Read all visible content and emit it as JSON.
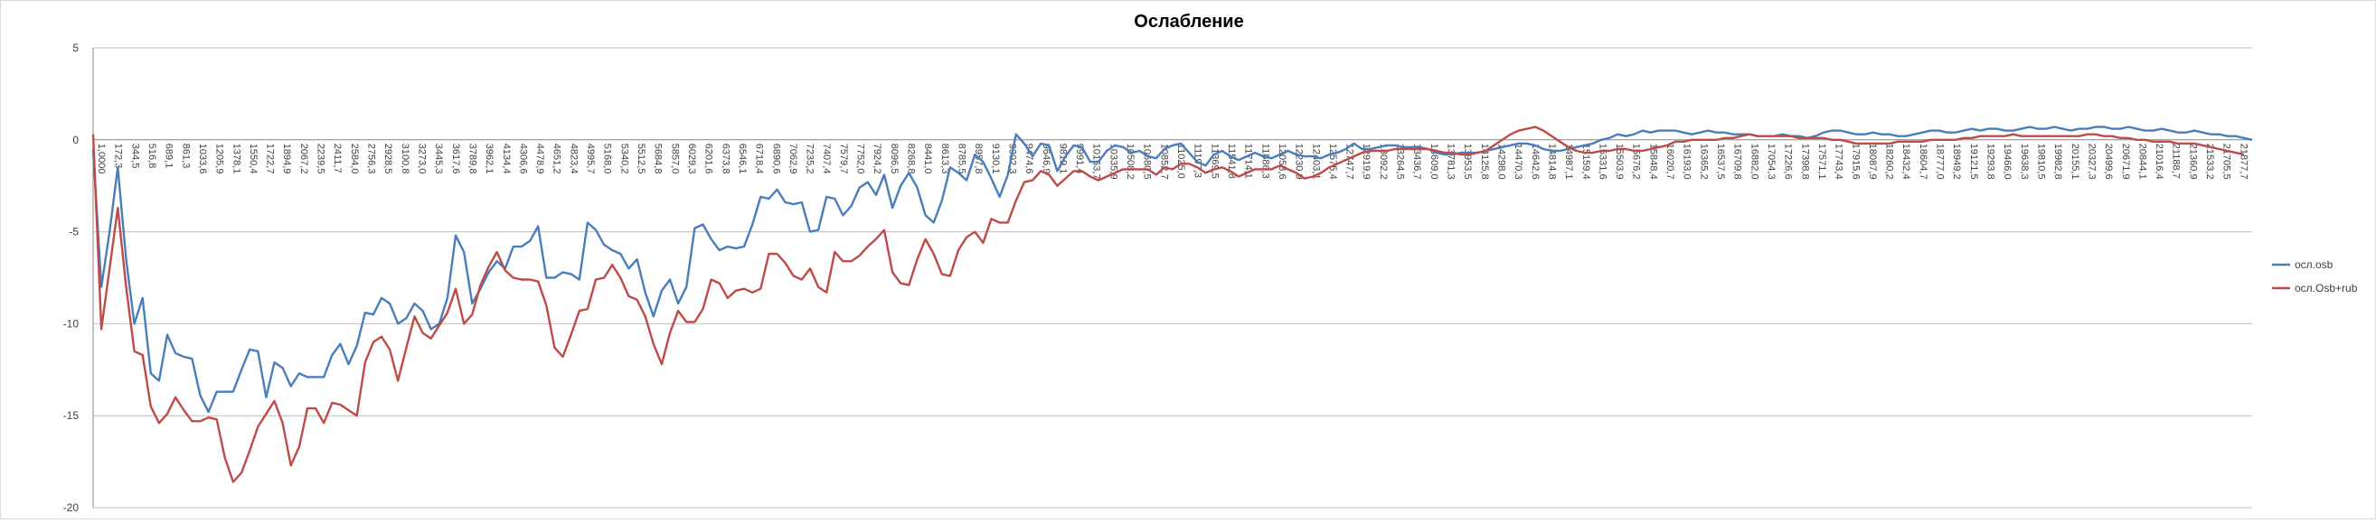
{
  "chart_data": {
    "type": "line",
    "title": "Ослабление",
    "xlabel": "",
    "ylabel": "",
    "ylim": [
      -20,
      5
    ],
    "yticks": [
      5,
      0,
      -5,
      -10,
      -15,
      -20
    ],
    "grid": true,
    "legend_position": "right",
    "xtick_labels": [
      "1,0000",
      "172,3",
      "344,5",
      "516,8",
      "689,1",
      "861,3",
      "1033,6",
      "1205,9",
      "1378,1",
      "1550,4",
      "1722,7",
      "1894,9",
      "2067,2",
      "2239,5",
      "2411,7",
      "2584,0",
      "2756,3",
      "2928,5",
      "3100,8",
      "3273,0",
      "3445,3",
      "3617,6",
      "3789,8",
      "3962,1",
      "4134,4",
      "4306,6",
      "4478,9",
      "4651,2",
      "4823,4",
      "4995,7",
      "5168,0",
      "5340,2",
      "5512,5",
      "5684,8",
      "5857,0",
      "6029,3",
      "6201,6",
      "6373,8",
      "6546,1",
      "6718,4",
      "6890,6",
      "7062,9",
      "7235,2",
      "7407,4",
      "7579,7",
      "7752,0",
      "7924,2",
      "8096,5",
      "8268,8",
      "8441,0",
      "8613,3",
      "8785,5",
      "8957,8",
      "9130,1",
      "9302,3",
      "9474,6",
      "9646,9",
      "9819,1",
      "9991,4",
      "10163,7",
      "10335,9",
      "10508,2",
      "10680,5",
      "10852,7",
      "11025,0",
      "11197,3",
      "11369,5",
      "11541,8",
      "11714,1",
      "11886,3",
      "12058,6",
      "12230,9",
      "12403,1",
      "12575,4",
      "12747,7",
      "12919,9",
      "13092,2",
      "13264,5",
      "13436,7",
      "13609,0",
      "13781,3",
      "13953,5",
      "14125,8",
      "14298,0",
      "14470,3",
      "14642,6",
      "14814,8",
      "14987,1",
      "15159,4",
      "15331,6",
      "15503,9",
      "15676,2",
      "15848,4",
      "16020,7",
      "16193,0",
      "16365,2",
      "16537,5",
      "16709,8",
      "16882,0",
      "17054,3",
      "17226,6",
      "17398,8",
      "17571,1",
      "17743,4",
      "17915,6",
      "18087,9",
      "18260,2",
      "18432,4",
      "18604,7",
      "18777,0",
      "18949,2",
      "19121,5",
      "19293,8",
      "19466,0",
      "19638,3",
      "19810,5",
      "19982,8",
      "20155,1",
      "20327,3",
      "20499,6",
      "20671,9",
      "20844,1",
      "21016,4",
      "21188,7",
      "21360,9",
      "21533,2",
      "21705,5",
      "21877,7"
    ],
    "series": [
      {
        "name": "осл.osb",
        "color": "#4a7ebb",
        "values": [
          -0.5,
          -8.0,
          -5.0,
          -1.5,
          -6.5,
          -10.0,
          -8.6,
          -12.7,
          -13.1,
          -10.6,
          -11.6,
          -11.8,
          -11.9,
          -13.9,
          -14.8,
          -13.7,
          -13.7,
          -13.7,
          -12.5,
          -11.4,
          -11.5,
          -14.0,
          -12.1,
          -12.4,
          -13.4,
          -12.7,
          -12.9,
          -12.9,
          -12.9,
          -11.7,
          -11.1,
          -12.2,
          -11.2,
          -9.4,
          -9.5,
          -8.6,
          -8.9,
          -10.0,
          -9.7,
          -8.9,
          -9.3,
          -10.3,
          -10.0,
          -8.6,
          -5.2,
          -6.1,
          -8.9,
          -8.1,
          -7.2,
          -6.6,
          -7.0,
          -5.8,
          -5.8,
          -5.5,
          -4.7,
          -7.5,
          -7.5,
          -7.2,
          -7.3,
          -7.6,
          -4.5,
          -4.9,
          -5.7,
          -6.0,
          -6.2,
          -7.0,
          -6.5,
          -8.3,
          -9.6,
          -8.2,
          -7.6,
          -8.9,
          -8.0,
          -4.8,
          -4.6,
          -5.4,
          -6.0,
          -5.8,
          -5.9,
          -5.8,
          -4.6,
          -3.1,
          -3.2,
          -2.7,
          -3.4,
          -3.5,
          -3.4,
          -5.0,
          -4.9,
          -3.1,
          -3.2,
          -4.1,
          -3.6,
          -2.6,
          -2.3,
          -3.0,
          -1.9,
          -3.7,
          -2.5,
          -1.8,
          -2.6,
          -4.1,
          -4.5,
          -3.3,
          -1.5,
          -1.8,
          -2.2,
          -0.8,
          -1.2,
          -2.1,
          -3.1,
          -1.9,
          0.3,
          -0.2,
          -0.9,
          -0.2,
          -0.3,
          -1.7,
          -0.9,
          -0.3,
          -0.4,
          -1.2,
          -1.2,
          -0.6,
          -0.3,
          -0.4,
          -0.7,
          -0.6,
          -0.9,
          -1.0,
          -0.5,
          -0.3,
          -0.2,
          -0.7,
          -1.2,
          -1.4,
          -0.8,
          -0.6,
          -0.9,
          -1.1,
          -0.9,
          -0.7,
          -0.9,
          -1.0,
          -0.8,
          -0.6,
          -0.8,
          -0.9,
          -0.9,
          -1.0,
          -0.8,
          -0.7,
          -0.5,
          -0.2,
          -0.5,
          -0.5,
          -0.4,
          -0.3,
          -0.3,
          -0.4,
          -0.4,
          -0.4,
          -0.5,
          -0.7,
          -0.8,
          -0.8,
          -0.7,
          -0.7,
          -0.7,
          -0.6,
          -0.5,
          -0.4,
          -0.3,
          -0.2,
          -0.2,
          -0.3,
          -0.5,
          -0.6,
          -0.6,
          -0.5,
          -0.4,
          -0.3,
          -0.2,
          0.0,
          0.1,
          0.3,
          0.2,
          0.3,
          0.5,
          0.4,
          0.5,
          0.5,
          0.5,
          0.4,
          0.3,
          0.4,
          0.5,
          0.4,
          0.4,
          0.3,
          0.3,
          0.3,
          0.2,
          0.2,
          0.2,
          0.3,
          0.2,
          0.2,
          0.1,
          0.2,
          0.4,
          0.5,
          0.5,
          0.4,
          0.3,
          0.3,
          0.4,
          0.3,
          0.3,
          0.2,
          0.2,
          0.3,
          0.4,
          0.5,
          0.5,
          0.4,
          0.4,
          0.5,
          0.6,
          0.5,
          0.6,
          0.6,
          0.5,
          0.5,
          0.6,
          0.7,
          0.6,
          0.6,
          0.7,
          0.6,
          0.5,
          0.6,
          0.6,
          0.7,
          0.7,
          0.6,
          0.6,
          0.7,
          0.6,
          0.5,
          0.5,
          0.6,
          0.5,
          0.4,
          0.4,
          0.5,
          0.4,
          0.3,
          0.3,
          0.2,
          0.2,
          0.1,
          0.0
        ]
      },
      {
        "name": "осл.Osb+rub",
        "color": "#be4b48",
        "values": [
          0.3,
          -10.3,
          -7.0,
          -3.7,
          -8.0,
          -11.5,
          -11.7,
          -14.5,
          -15.4,
          -14.9,
          -14.0,
          -14.7,
          -15.3,
          -15.3,
          -15.1,
          -15.2,
          -17.3,
          -18.6,
          -18.1,
          -16.9,
          -15.6,
          -14.9,
          -14.2,
          -15.4,
          -17.7,
          -16.7,
          -14.6,
          -14.6,
          -15.4,
          -14.3,
          -14.4,
          -14.7,
          -15.0,
          -12.1,
          -11.0,
          -10.7,
          -11.4,
          -13.1,
          -11.3,
          -9.6,
          -10.5,
          -10.8,
          -10.1,
          -9.4,
          -8.1,
          -10.0,
          -9.5,
          -7.9,
          -6.9,
          -6.1,
          -7.1,
          -7.5,
          -7.6,
          -7.6,
          -7.7,
          -9.0,
          -11.3,
          -11.8,
          -10.6,
          -9.3,
          -9.2,
          -7.6,
          -7.5,
          -6.8,
          -7.5,
          -8.5,
          -8.7,
          -9.6,
          -11.1,
          -12.2,
          -10.5,
          -9.3,
          -9.9,
          -9.9,
          -9.2,
          -7.6,
          -7.8,
          -8.6,
          -8.2,
          -8.1,
          -8.3,
          -8.1,
          -6.2,
          -6.2,
          -6.7,
          -7.4,
          -7.6,
          -7.0,
          -8.0,
          -8.3,
          -6.1,
          -6.6,
          -6.6,
          -6.3,
          -5.8,
          -5.4,
          -4.9,
          -7.2,
          -7.8,
          -7.9,
          -6.5,
          -5.4,
          -6.2,
          -7.3,
          -7.4,
          -6.0,
          -5.3,
          -5.0,
          -5.6,
          -4.3,
          -4.5,
          -4.5,
          -3.3,
          -2.3,
          -2.2,
          -1.7,
          -1.9,
          -2.5,
          -2.1,
          -1.7,
          -1.7,
          -2.0,
          -2.2,
          -2.0,
          -1.8,
          -1.6,
          -1.6,
          -1.6,
          -1.6,
          -1.9,
          -1.5,
          -1.6,
          -1.3,
          -1.3,
          -1.5,
          -1.8,
          -1.6,
          -1.5,
          -1.7,
          -2.0,
          -1.8,
          -1.6,
          -1.6,
          -1.6,
          -1.4,
          -1.6,
          -1.8,
          -2.1,
          -2.0,
          -1.8,
          -1.5,
          -1.3,
          -1.1,
          -0.9,
          -0.7,
          -0.6,
          -0.6,
          -0.6,
          -0.5,
          -0.5,
          -0.5,
          -0.5,
          -0.5,
          -0.6,
          -0.7,
          -0.7,
          -0.8,
          -0.8,
          -0.7,
          -0.6,
          -0.3,
          0.0,
          0.3,
          0.5,
          0.6,
          0.7,
          0.5,
          0.2,
          -0.1,
          -0.4,
          -0.6,
          -0.7,
          -0.7,
          -0.6,
          -0.6,
          -0.5,
          -0.5,
          -0.6,
          -0.6,
          -0.5,
          -0.4,
          -0.3,
          -0.1,
          -0.1,
          0.0,
          0.0,
          0.0,
          0.0,
          0.1,
          0.1,
          0.2,
          0.3,
          0.2,
          0.2,
          0.2,
          0.2,
          0.2,
          0.1,
          0.1,
          0.1,
          0.1,
          0.0,
          0.0,
          -0.1,
          -0.2,
          -0.2,
          -0.2,
          -0.2,
          -0.2,
          -0.1,
          -0.1,
          -0.1,
          -0.1,
          0.0,
          0.0,
          0.0,
          0.0,
          0.1,
          0.1,
          0.2,
          0.2,
          0.2,
          0.2,
          0.3,
          0.2,
          0.2,
          0.2,
          0.2,
          0.2,
          0.2,
          0.2,
          0.2,
          0.3,
          0.3,
          0.2,
          0.2,
          0.1,
          0.1,
          0.0,
          0.0,
          -0.1,
          -0.1,
          -0.1,
          -0.2,
          -0.2,
          -0.2,
          -0.3,
          -0.4,
          -0.5,
          -0.6,
          -0.7,
          -0.8
        ]
      }
    ]
  }
}
